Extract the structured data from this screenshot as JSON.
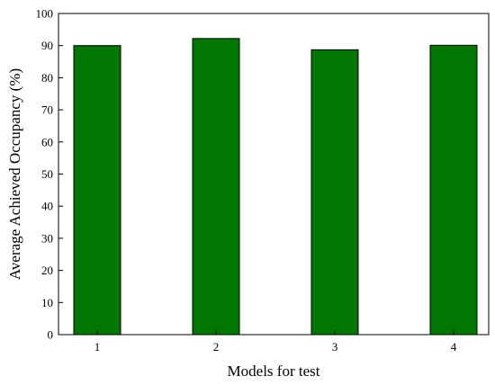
{
  "chart_data": {
    "type": "bar",
    "categories": [
      "1",
      "2",
      "3",
      "4"
    ],
    "values": [
      90.0,
      92.2,
      88.7,
      90.1
    ],
    "title": "",
    "xlabel": "Models for test",
    "ylabel": "Average Achieved Occupancy (%)",
    "ylim": [
      0,
      100
    ],
    "yticks": [
      0,
      10,
      20,
      30,
      40,
      50,
      60,
      70,
      80,
      90,
      100
    ],
    "grid": false,
    "bar_color": "#007700",
    "bar_edge_color": "#000000"
  }
}
